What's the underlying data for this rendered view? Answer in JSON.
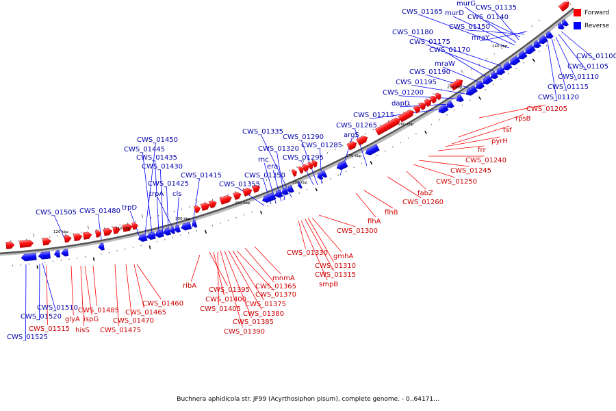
{
  "caption": "Buchnera aphidicola str. JF99 (Acyrthosiphon pisum), complete genome. - 0..64171...",
  "legend": {
    "forward_label": "Forward",
    "reverse_label": "Reverse",
    "forward_color": "#ff0000",
    "reverse_color": "#0000ff"
  },
  "tick_labels": [
    "120 kbp",
    "310 kbp",
    "300 kbp",
    "290 kbp",
    "280 kbp",
    "270 kbp",
    "260 kbp",
    "250 kbp",
    "240 kbp"
  ],
  "reverse_labels": [
    "CWS_01505",
    "CWS_01480",
    "trpD",
    "CWS_01450",
    "CWS_01445",
    "CWS_01435",
    "CWS_01430",
    "CWS_01425",
    "trpA",
    "cls",
    "CWS_01415",
    "CWS_01355",
    "CWS_01350",
    "rnc",
    "era",
    "CWS_01320",
    "CWS_01335",
    "CWS_01295",
    "CWS_01290",
    "CWS_01285",
    "argS",
    "CWS_01265",
    "CWS_01215",
    "dapD",
    "CWS_01200",
    "CWS_01195",
    "CWS_01190",
    "mraW",
    "CWS_01170",
    "CWS_01175",
    "CWS_01180",
    "murG",
    "murD",
    "CWS_01165",
    "CWS_01135",
    "CWS_01140",
    "CWS_01150",
    "mraY",
    "CWS_01100",
    "CWS_01105",
    "CWS_01110",
    "CWS_01115",
    "CWS_01120",
    "CWS_01510",
    "CWS_01520",
    "CWS_01525"
  ],
  "forward_labels": [
    "CWS_01515",
    "glyA",
    "hisS",
    "ispG",
    "CWS_01485",
    "CWS_01475",
    "CWS_01470",
    "CWS_01465",
    "CWS_01460",
    "ribA",
    "CWS_01395",
    "CWS_01400",
    "CWS_01405",
    "CWS_01370",
    "CWS_01375",
    "CWS_01380",
    "CWS_01385",
    "CWS_01390",
    "CWS_01365",
    "mnmA",
    "CWS_01330",
    "gmhA",
    "CWS_01310",
    "CWS_01315",
    "smpB",
    "CWS_01300",
    "flhA",
    "flhB",
    "CWS_01260",
    "fabZ",
    "CWS_01250",
    "CWS_01245",
    "CWS_01240",
    "frr",
    "pyrH",
    "tsf",
    "rpsB",
    "CWS_01205"
  ]
}
